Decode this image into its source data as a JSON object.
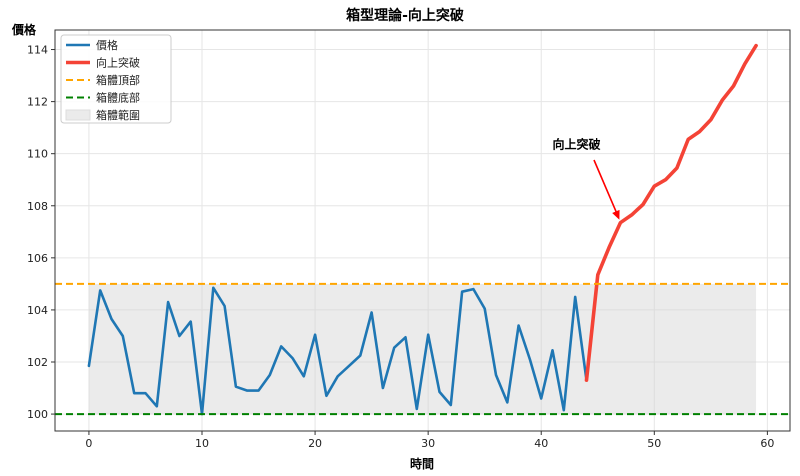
{
  "chart_data": {
    "type": "line",
    "title": "箱型理論-向上突破",
    "xlabel": "時間",
    "ylabel": "價格",
    "xlim": [
      -3,
      62
    ],
    "ylim": [
      99.35,
      114.75
    ],
    "xticks": [
      0,
      10,
      20,
      30,
      40,
      50,
      60
    ],
    "yticks": [
      100,
      102,
      104,
      106,
      108,
      110,
      112,
      114
    ],
    "grid": true,
    "legend_position": "upper left",
    "series": [
      {
        "name": "價格",
        "color": "#1f77b4",
        "style": "solid",
        "x": [
          0,
          1,
          2,
          3,
          4,
          5,
          6,
          7,
          8,
          9,
          10,
          11,
          12,
          13,
          14,
          15,
          16,
          17,
          18,
          19,
          20,
          21,
          22,
          23,
          24,
          25,
          26,
          27,
          28,
          29,
          30,
          31,
          32,
          33,
          34,
          35,
          36,
          37,
          38,
          39,
          40,
          41,
          42,
          43,
          44
        ],
        "values": [
          101.85,
          104.75,
          103.65,
          103.0,
          100.8,
          100.8,
          100.3,
          104.3,
          103.0,
          103.55,
          100.0,
          104.85,
          104.15,
          101.05,
          100.9,
          100.9,
          101.5,
          102.6,
          102.15,
          101.45,
          103.05,
          100.7,
          101.45,
          101.85,
          102.25,
          103.9,
          101.0,
          102.55,
          102.95,
          100.2,
          103.05,
          100.85,
          100.35,
          104.7,
          104.8,
          104.05,
          101.5,
          100.45,
          103.4,
          102.1,
          100.6,
          102.45,
          100.15,
          104.5,
          101.3
        ]
      },
      {
        "name": "向上突破",
        "color": "#f44336",
        "style": "solid",
        "x": [
          44,
          45,
          46,
          47,
          48,
          49,
          50,
          51,
          52,
          53,
          54,
          55,
          56,
          57,
          58,
          59
        ],
        "values": [
          101.3,
          105.35,
          106.4,
          107.35,
          107.65,
          108.05,
          108.75,
          109.0,
          109.45,
          110.55,
          110.85,
          111.3,
          112.05,
          112.6,
          113.45,
          114.15
        ]
      },
      {
        "name": "箱體頂部",
        "color": "#ffa500",
        "style": "dashed",
        "y": 105
      },
      {
        "name": "箱體底部",
        "color": "#008000",
        "style": "dashed",
        "y": 100
      },
      {
        "name": "箱體範圍",
        "color": "#d3d3d3",
        "style": "fill",
        "x_range": [
          0,
          59
        ],
        "y_range": [
          100,
          105
        ]
      }
    ],
    "annotations": [
      {
        "text": "向上突破",
        "xy": [
          47,
          107.35
        ],
        "xytext": [
          41,
          110.2
        ],
        "arrow_color": "#ff0000"
      }
    ]
  }
}
